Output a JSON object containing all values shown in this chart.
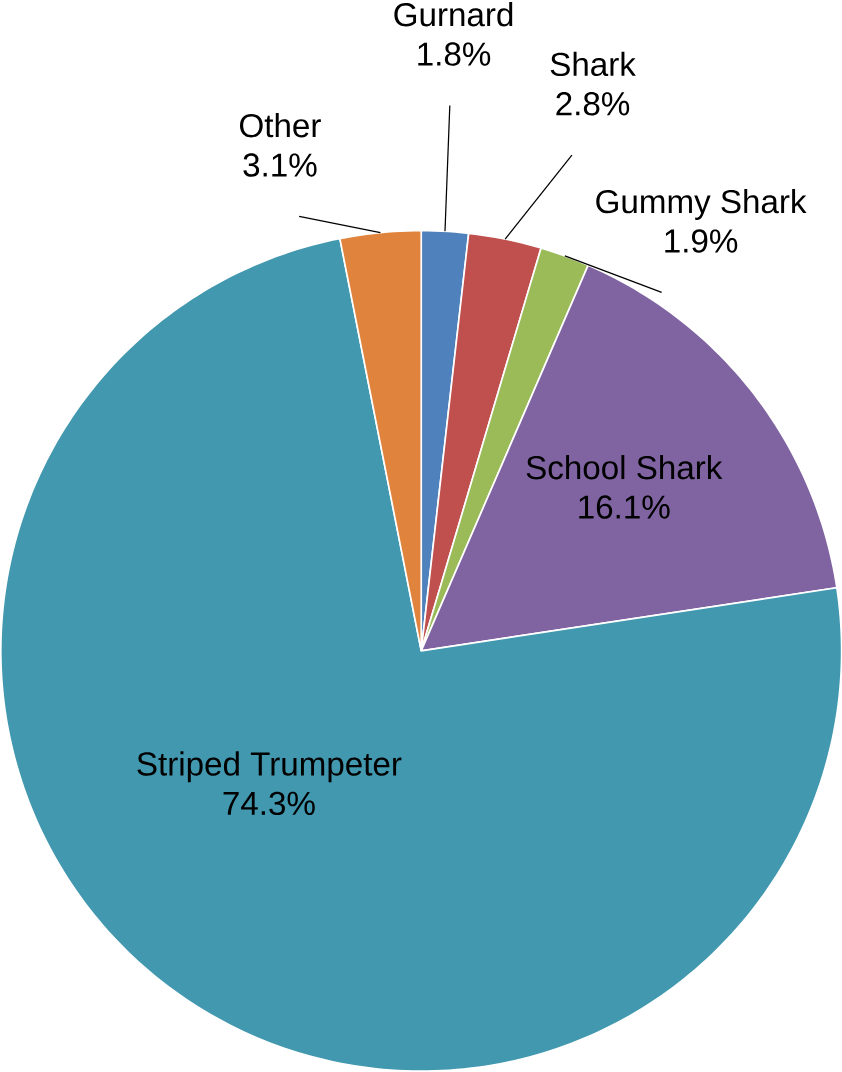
{
  "chart_data": {
    "type": "pie",
    "categories": [
      "Gurnard",
      "Shark",
      "Gummy Shark",
      "School Shark",
      "Striped Trumpeter",
      "Other"
    ],
    "values": [
      1.8,
      2.8,
      1.9,
      16.1,
      74.3,
      3.1
    ],
    "colors": [
      "#4f81bd",
      "#c0504d",
      "#9bbb59",
      "#8064a2",
      "#4198af",
      "#e0843d"
    ],
    "value_labels": [
      "1.8%",
      "2.8%",
      "1.9%",
      "16.1%",
      "74.3%",
      "3.1%"
    ]
  }
}
